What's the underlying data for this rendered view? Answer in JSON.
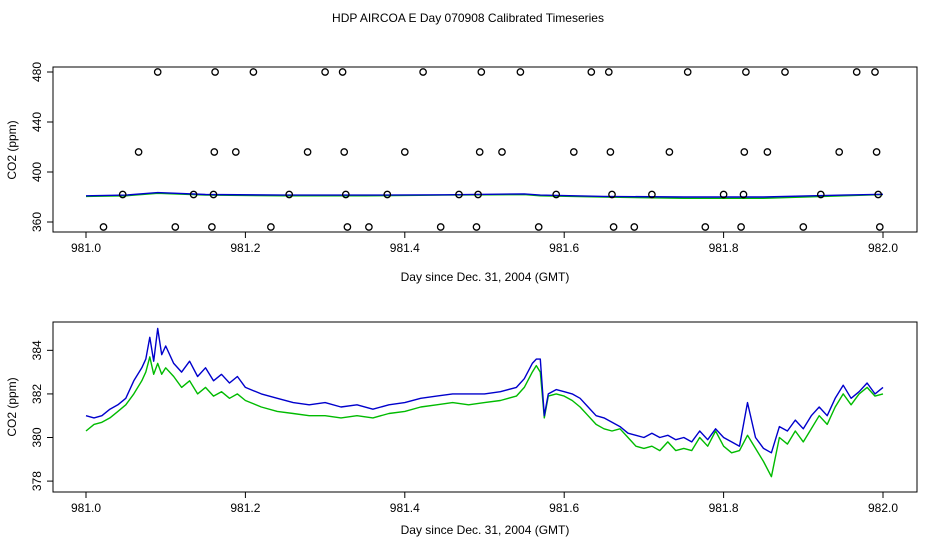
{
  "title": "HDP AIRCOA E  Day 070908  Calibrated Timeseries",
  "colors": {
    "series_blue": "#0000cc",
    "series_green": "#00bb00",
    "points": "#000000",
    "axis": "#000000"
  },
  "chart_data": [
    {
      "type": "scatter",
      "xlabel": "Day since Dec. 31, 2004 (GMT)",
      "ylabel": "CO2 (ppm)",
      "xlim": [
        981.0,
        982.0
      ],
      "ylim": [
        352,
        484
      ],
      "x_ticks": [
        "981.0",
        "981.2",
        "981.4",
        "981.6",
        "981.8",
        "982.0"
      ],
      "y_ticks": [
        "360",
        "400",
        "440",
        "480"
      ],
      "y_tick_values": [
        360,
        400,
        440,
        480
      ],
      "x_tick_values": [
        981.0,
        981.2,
        981.4,
        981.6,
        981.8,
        982.0
      ],
      "points": [
        [
          981.022,
          356
        ],
        [
          981.046,
          382
        ],
        [
          981.066,
          416
        ],
        [
          981.09,
          480
        ],
        [
          981.112,
          356
        ],
        [
          981.135,
          382
        ],
        [
          981.158,
          356
        ],
        [
          981.16,
          382
        ],
        [
          981.161,
          416
        ],
        [
          981.162,
          480
        ],
        [
          981.188,
          416
        ],
        [
          981.21,
          480
        ],
        [
          981.232,
          356
        ],
        [
          981.255,
          382
        ],
        [
          981.278,
          416
        ],
        [
          981.3,
          480
        ],
        [
          981.322,
          480
        ],
        [
          981.324,
          416
        ],
        [
          981.326,
          382
        ],
        [
          981.328,
          356
        ],
        [
          981.355,
          356
        ],
        [
          981.378,
          382
        ],
        [
          981.4,
          416
        ],
        [
          981.423,
          480
        ],
        [
          981.445,
          356
        ],
        [
          981.468,
          382
        ],
        [
          981.49,
          356
        ],
        [
          981.492,
          382
        ],
        [
          981.494,
          416
        ],
        [
          981.496,
          480
        ],
        [
          981.522,
          416
        ],
        [
          981.545,
          480
        ],
        [
          981.568,
          356
        ],
        [
          981.59,
          382
        ],
        [
          981.612,
          416
        ],
        [
          981.634,
          480
        ],
        [
          981.656,
          480
        ],
        [
          981.658,
          416
        ],
        [
          981.66,
          382
        ],
        [
          981.662,
          356
        ],
        [
          981.688,
          356
        ],
        [
          981.71,
          382
        ],
        [
          981.732,
          416
        ],
        [
          981.755,
          480
        ],
        [
          981.777,
          356
        ],
        [
          981.8,
          382
        ],
        [
          981.822,
          356
        ],
        [
          981.825,
          382
        ],
        [
          981.826,
          416
        ],
        [
          981.828,
          480
        ],
        [
          981.855,
          416
        ],
        [
          981.877,
          480
        ],
        [
          981.9,
          356
        ],
        [
          981.922,
          382
        ],
        [
          981.945,
          416
        ],
        [
          981.967,
          480
        ],
        [
          981.99,
          480
        ],
        [
          981.992,
          416
        ],
        [
          981.994,
          382
        ],
        [
          981.996,
          356
        ]
      ],
      "series": [
        {
          "color": "blue",
          "x": [
            981.0,
            981.05,
            981.09,
            981.15,
            981.25,
            981.35,
            981.45,
            981.55,
            981.57,
            981.65,
            981.75,
            981.85,
            981.95,
            982.0
          ],
          "values": [
            381,
            381.5,
            383.5,
            382,
            381.5,
            381.5,
            381.8,
            382.5,
            381.5,
            380.5,
            380,
            380,
            381.5,
            382.2
          ]
        },
        {
          "color": "green",
          "x": [
            981.0,
            981.05,
            981.09,
            981.15,
            981.25,
            981.35,
            981.45,
            981.55,
            981.57,
            981.65,
            981.75,
            981.85,
            981.95,
            982.0
          ],
          "values": [
            380.5,
            381,
            383,
            381.5,
            381,
            381,
            381.5,
            382,
            381,
            380,
            379,
            379,
            381,
            382
          ]
        }
      ]
    },
    {
      "type": "line",
      "xlabel": "Day since Dec. 31, 2004 (GMT)",
      "ylabel": "CO2 (ppm)",
      "xlim": [
        981.0,
        982.0
      ],
      "ylim": [
        377.5,
        385.3
      ],
      "x_ticks": [
        "981.0",
        "981.2",
        "981.4",
        "981.6",
        "981.8",
        "982.0"
      ],
      "y_ticks": [
        "378",
        "380",
        "382",
        "384"
      ],
      "y_tick_values": [
        378,
        380,
        382,
        384
      ],
      "x_tick_values": [
        981.0,
        981.2,
        981.4,
        981.6,
        981.8,
        982.0
      ],
      "series": [
        {
          "color": "blue",
          "x": [
            981.0,
            981.01,
            981.02,
            981.03,
            981.04,
            981.05,
            981.06,
            981.07,
            981.075,
            981.08,
            981.085,
            981.09,
            981.095,
            981.1,
            981.11,
            981.12,
            981.13,
            981.14,
            981.15,
            981.16,
            981.17,
            981.18,
            981.19,
            981.2,
            981.22,
            981.24,
            981.26,
            981.28,
            981.3,
            981.32,
            981.34,
            981.36,
            981.38,
            981.4,
            981.42,
            981.44,
            981.46,
            981.48,
            981.5,
            981.52,
            981.54,
            981.55,
            981.56,
            981.565,
            981.57,
            981.575,
            981.58,
            981.59,
            981.6,
            981.61,
            981.62,
            981.63,
            981.64,
            981.65,
            981.66,
            981.67,
            981.68,
            981.69,
            981.7,
            981.71,
            981.72,
            981.73,
            981.74,
            981.75,
            981.76,
            981.77,
            981.78,
            981.79,
            981.8,
            981.81,
            981.82,
            981.83,
            981.84,
            981.85,
            981.86,
            981.87,
            981.88,
            981.89,
            981.9,
            981.91,
            981.92,
            981.93,
            981.94,
            981.95,
            981.96,
            981.97,
            981.98,
            981.99,
            982.0
          ],
          "values": [
            381.0,
            380.9,
            381.0,
            381.3,
            381.5,
            381.8,
            382.6,
            383.2,
            383.6,
            384.6,
            383.5,
            385.0,
            383.8,
            384.2,
            383.4,
            383.0,
            383.5,
            382.8,
            383.2,
            382.6,
            382.9,
            382.5,
            382.8,
            382.3,
            382.0,
            381.8,
            381.6,
            381.5,
            381.6,
            381.4,
            381.5,
            381.3,
            381.5,
            381.6,
            381.8,
            381.9,
            382.0,
            382.0,
            382.0,
            382.1,
            382.3,
            382.7,
            383.4,
            383.6,
            383.6,
            381.0,
            382.0,
            382.2,
            382.1,
            382.0,
            381.8,
            381.4,
            381.0,
            380.9,
            380.7,
            380.5,
            380.2,
            380.1,
            380.0,
            380.2,
            380.0,
            380.1,
            379.9,
            380.0,
            379.8,
            380.3,
            379.9,
            380.4,
            380.0,
            379.8,
            379.6,
            381.6,
            380.0,
            379.5,
            379.3,
            380.5,
            380.3,
            380.8,
            380.4,
            381.0,
            381.4,
            381.0,
            381.8,
            382.4,
            381.8,
            382.1,
            382.5,
            382.0,
            382.3
          ]
        },
        {
          "color": "green",
          "x": [
            981.0,
            981.01,
            981.02,
            981.03,
            981.04,
            981.05,
            981.06,
            981.07,
            981.075,
            981.08,
            981.085,
            981.09,
            981.095,
            981.1,
            981.11,
            981.12,
            981.13,
            981.14,
            981.15,
            981.16,
            981.17,
            981.18,
            981.19,
            981.2,
            981.22,
            981.24,
            981.26,
            981.28,
            981.3,
            981.32,
            981.34,
            981.36,
            981.38,
            981.4,
            981.42,
            981.44,
            981.46,
            981.48,
            981.5,
            981.52,
            981.54,
            981.55,
            981.56,
            981.565,
            981.57,
            981.575,
            981.58,
            981.59,
            981.6,
            981.61,
            981.62,
            981.63,
            981.64,
            981.65,
            981.66,
            981.67,
            981.68,
            981.69,
            981.7,
            981.71,
            981.72,
            981.73,
            981.74,
            981.75,
            981.76,
            981.77,
            981.78,
            981.79,
            981.8,
            981.81,
            981.82,
            981.83,
            981.84,
            981.85,
            981.86,
            981.87,
            981.88,
            981.89,
            981.9,
            981.91,
            981.92,
            981.93,
            981.94,
            981.95,
            981.96,
            981.97,
            981.98,
            981.99,
            982.0
          ],
          "values": [
            380.3,
            380.6,
            380.7,
            380.9,
            381.2,
            381.5,
            382.0,
            382.6,
            383.0,
            383.7,
            382.9,
            383.4,
            382.9,
            383.2,
            382.8,
            382.3,
            382.6,
            382.0,
            382.3,
            381.9,
            382.1,
            381.8,
            382.0,
            381.7,
            381.4,
            381.2,
            381.1,
            381.0,
            381.0,
            380.9,
            381.0,
            380.9,
            381.1,
            381.2,
            381.4,
            381.5,
            381.6,
            381.5,
            381.6,
            381.7,
            381.9,
            382.3,
            383.0,
            383.3,
            383.0,
            380.9,
            381.9,
            382.0,
            381.9,
            381.7,
            381.4,
            381.0,
            380.6,
            380.4,
            380.3,
            380.4,
            380.0,
            379.6,
            379.5,
            379.6,
            379.4,
            379.8,
            379.4,
            379.5,
            379.4,
            380.0,
            379.6,
            380.3,
            379.6,
            379.3,
            379.4,
            380.1,
            379.5,
            378.9,
            378.2,
            380.0,
            379.7,
            380.3,
            379.8,
            380.4,
            381.0,
            380.6,
            381.4,
            382.0,
            381.5,
            382.0,
            382.3,
            381.9,
            382.0
          ]
        }
      ]
    }
  ]
}
